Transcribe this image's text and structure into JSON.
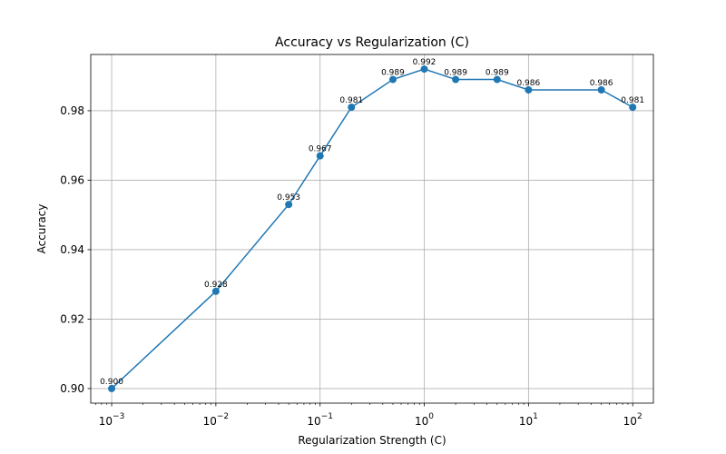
{
  "chart_data": {
    "type": "line",
    "title": "Accuracy vs Regularization (C)",
    "xlabel": "Regularization Strength (C)",
    "ylabel": "Accuracy",
    "x_scale": "log",
    "xlim": [
      0.00063,
      158
    ],
    "ylim": [
      0.8958,
      0.9962
    ],
    "grid": true,
    "line_color": "#1f77b4",
    "x": [
      0.001,
      0.01,
      0.05,
      0.1,
      0.2,
      0.5,
      1,
      2,
      5,
      10,
      50,
      100
    ],
    "y": [
      0.9,
      0.928,
      0.953,
      0.967,
      0.981,
      0.989,
      0.992,
      0.989,
      0.989,
      0.986,
      0.986,
      0.981
    ],
    "data_labels": [
      "0.900",
      "0.928",
      "0.953",
      "0.967",
      "0.981",
      "0.989",
      "0.992",
      "0.989",
      "0.989",
      "0.986",
      "0.986",
      "0.981"
    ],
    "x_ticks": [
      {
        "value": 0.001,
        "base": "10",
        "exp": "−3"
      },
      {
        "value": 0.01,
        "base": "10",
        "exp": "−2"
      },
      {
        "value": 0.1,
        "base": "10",
        "exp": "−1"
      },
      {
        "value": 1,
        "base": "10",
        "exp": "0"
      },
      {
        "value": 10,
        "base": "10",
        "exp": "1"
      },
      {
        "value": 100,
        "base": "10",
        "exp": "2"
      }
    ],
    "y_ticks": [
      {
        "value": 0.9,
        "label": "0.90"
      },
      {
        "value": 0.92,
        "label": "0.92"
      },
      {
        "value": 0.94,
        "label": "0.94"
      },
      {
        "value": 0.96,
        "label": "0.96"
      },
      {
        "value": 0.98,
        "label": "0.98"
      }
    ]
  }
}
